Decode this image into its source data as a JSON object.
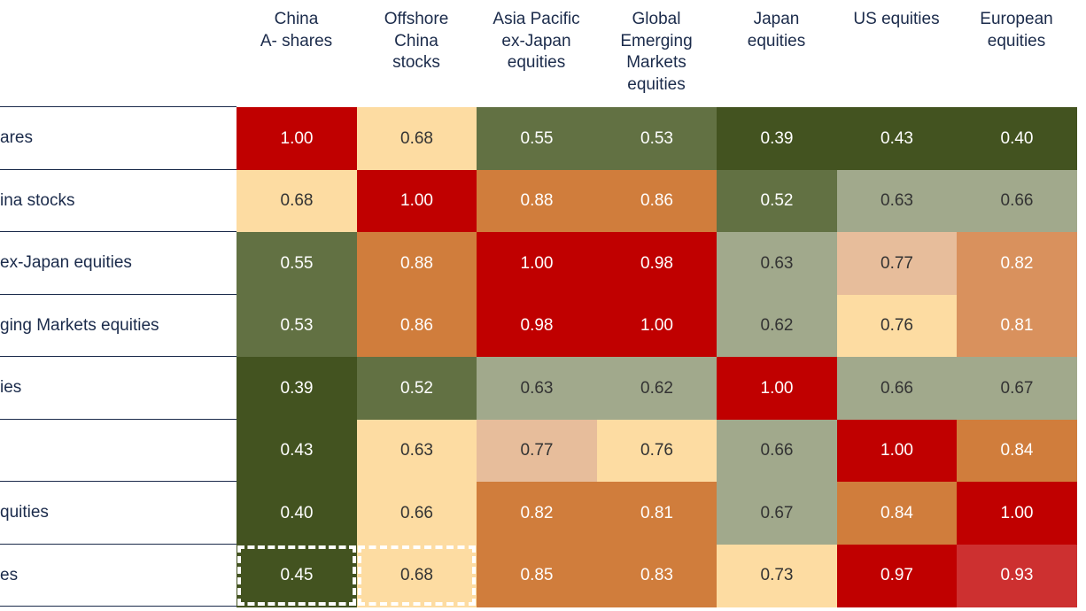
{
  "chart_data": {
    "type": "heatmap",
    "columns": [
      "China\nA- shares",
      "Offshore\nChina\nstocks",
      "Asia Pacific\nex-Japan\nequities",
      "Global\nEmerging\nMarkets\nequities",
      "Japan\nequities",
      "US equities",
      "European\nequities"
    ],
    "row_labels": [
      "ares",
      "ina stocks",
      "ex-Japan equities",
      "ging Markets equities",
      "ies",
      "",
      "quities",
      "es"
    ],
    "values": [
      [
        1.0,
        0.68,
        0.55,
        0.53,
        0.39,
        0.43,
        0.4
      ],
      [
        0.68,
        1.0,
        0.88,
        0.86,
        0.52,
        0.63,
        0.66
      ],
      [
        0.55,
        0.88,
        1.0,
        0.98,
        0.63,
        0.77,
        0.82
      ],
      [
        0.53,
        0.86,
        0.98,
        1.0,
        0.62,
        0.76,
        0.81
      ],
      [
        0.39,
        0.52,
        0.63,
        0.62,
        1.0,
        0.66,
        0.67
      ],
      [
        0.43,
        0.63,
        0.77,
        0.76,
        0.66,
        1.0,
        0.84
      ],
      [
        0.4,
        0.66,
        0.82,
        0.81,
        0.67,
        0.84,
        1.0
      ],
      [
        0.45,
        0.68,
        0.85,
        0.83,
        0.73,
        0.97,
        0.93
      ]
    ],
    "colors": [
      [
        "#c00000",
        "#fddca2",
        "#627143",
        "#627143",
        "#435320",
        "#435320",
        "#435320"
      ],
      [
        "#fddca2",
        "#c00000",
        "#d07d3c",
        "#d07d3c",
        "#627143",
        "#a1a98c",
        "#a1a98c"
      ],
      [
        "#627143",
        "#d07d3c",
        "#c00000",
        "#c00000",
        "#a1a98c",
        "#e7bd9b",
        "#d9915d"
      ],
      [
        "#627143",
        "#d07d3c",
        "#c00000",
        "#c00000",
        "#a1a98c",
        "#fddca2",
        "#d9915d"
      ],
      [
        "#435320",
        "#627143",
        "#a1a98c",
        "#a1a98c",
        "#c00000",
        "#a1a98c",
        "#a1a98c"
      ],
      [
        "#435320",
        "#fddca2",
        "#e7bd9b",
        "#fddca2",
        "#a1a98c",
        "#c00000",
        "#d07d3c"
      ],
      [
        "#435320",
        "#fddca2",
        "#d07d3c",
        "#d07d3c",
        "#a1a98c",
        "#d07d3c",
        "#c00000"
      ],
      [
        "#435320",
        "#fddca2",
        "#d07d3c",
        "#d07d3c",
        "#fddca2",
        "#c00000",
        "#cd3030"
      ]
    ],
    "highlighted_cells": [
      [
        7,
        0
      ],
      [
        7,
        1
      ]
    ]
  }
}
